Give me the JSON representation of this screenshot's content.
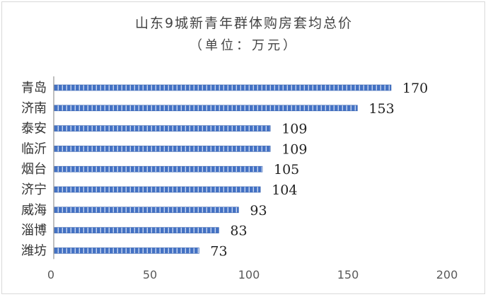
{
  "chart_data": {
    "type": "bar",
    "orientation": "horizontal",
    "title": "山东9城新青年群体购房套均总价",
    "subtitle": "（单位：万元）",
    "categories": [
      "青岛",
      "济南",
      "泰安",
      "临沂",
      "烟台",
      "济宁",
      "威海",
      "淄博",
      "潍坊"
    ],
    "values": [
      170,
      153,
      109,
      109,
      105,
      104,
      93,
      83,
      73
    ],
    "xlim": [
      0,
      200
    ],
    "xticks": [
      0,
      50,
      100,
      150,
      200
    ],
    "xlabel": "",
    "ylabel": "",
    "grid": false,
    "legend": "none",
    "bar_color": "#4472c4",
    "data_labels": true
  }
}
